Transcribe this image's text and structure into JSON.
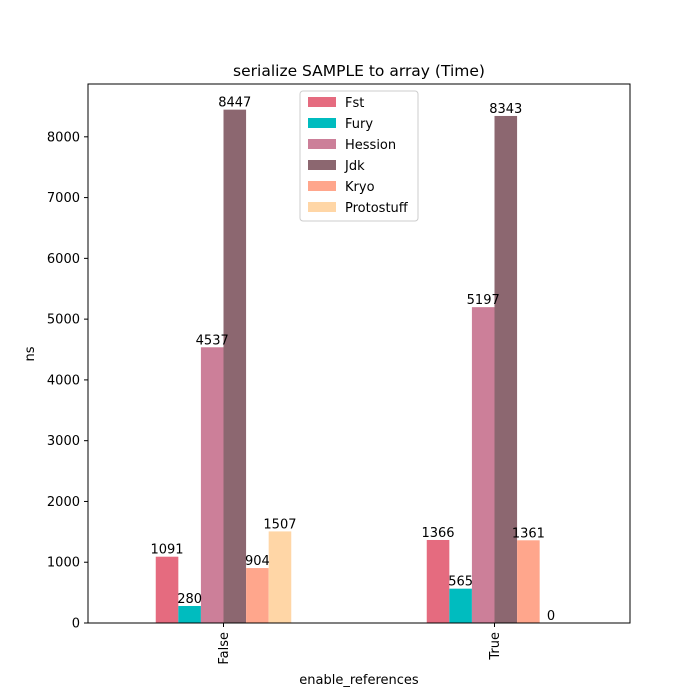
{
  "chart_data": {
    "type": "bar",
    "title": "serialize SAMPLE to array (Time)",
    "xlabel": "enable_references",
    "ylabel": "ns",
    "categories": [
      "False",
      "True"
    ],
    "ylim": [
      0,
      8869
    ],
    "yticks": [
      0,
      1000,
      2000,
      3000,
      4000,
      5000,
      6000,
      7000,
      8000
    ],
    "grid": false,
    "legend_position": "top-center",
    "series": [
      {
        "name": "Fst",
        "color": "#e56b7f",
        "values": [
          1091,
          1366
        ]
      },
      {
        "name": "Fury",
        "color": "#00bcbf",
        "values": [
          280,
          565
        ]
      },
      {
        "name": "Hession",
        "color": "#cc7f99",
        "values": [
          4537,
          5197
        ]
      },
      {
        "name": "Jdk",
        "color": "#8c6770",
        "values": [
          8447,
          8343
        ]
      },
      {
        "name": "Kryo",
        "color": "#ffa68c",
        "values": [
          904,
          1361
        ]
      },
      {
        "name": "Protostuff",
        "color": "#ffd6a6",
        "values": [
          1507,
          0
        ]
      }
    ]
  }
}
